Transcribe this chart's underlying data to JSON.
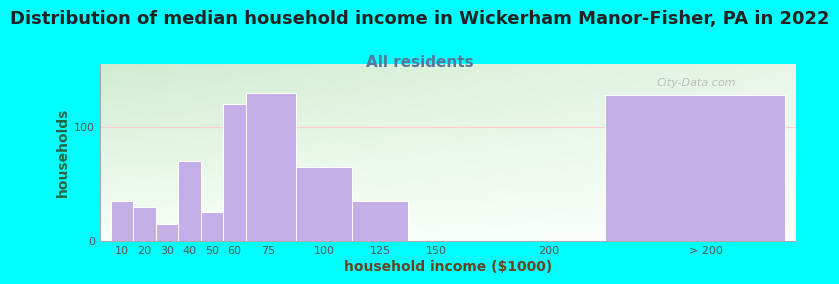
{
  "title": "Distribution of median household income in Wickerham Manor-Fisher, PA in 2022",
  "subtitle": "All residents",
  "xlabel": "household income ($1000)",
  "ylabel": "households",
  "background_color": "#00FFFF",
  "bar_color": "#C4AEE8",
  "bar_edge_color": "#ffffff",
  "watermark": "City-Data.com",
  "title_color": "#222222",
  "subtitle_color": "#557799",
  "xlabel_color": "#664422",
  "ylabel_color": "#226644",
  "tick_color": "#555555",
  "title_fontsize": 13,
  "subtitle_fontsize": 11,
  "axis_label_fontsize": 10,
  "tick_fontsize": 8,
  "ylim": [
    0,
    155
  ],
  "yticks": [
    0,
    100
  ],
  "xlim_left": 0,
  "xlim_right": 310,
  "xtick_positions": [
    10,
    20,
    30,
    40,
    50,
    60,
    75,
    100,
    125,
    150,
    200,
    270
  ],
  "xtick_labels": [
    "10",
    "20",
    "30",
    "40",
    "50",
    "60",
    "75",
    "100",
    "125",
    "150",
    "200",
    "> 200"
  ],
  "bar_lefts": [
    5,
    15,
    25,
    35,
    45,
    55,
    65,
    87.5,
    112.5,
    162.5,
    225
  ],
  "bar_widths": [
    10,
    10,
    10,
    10,
    10,
    10,
    22.5,
    25,
    25,
    62.5,
    80
  ],
  "bar_heights": [
    35,
    30,
    15,
    70,
    25,
    120,
    130,
    65,
    35,
    0,
    128
  ],
  "bg_top_color": "#d0ecd0",
  "bg_bottom_color": "#f8fff8",
  "grid_line_color": "#ffcccc",
  "grid_line_y": 100
}
